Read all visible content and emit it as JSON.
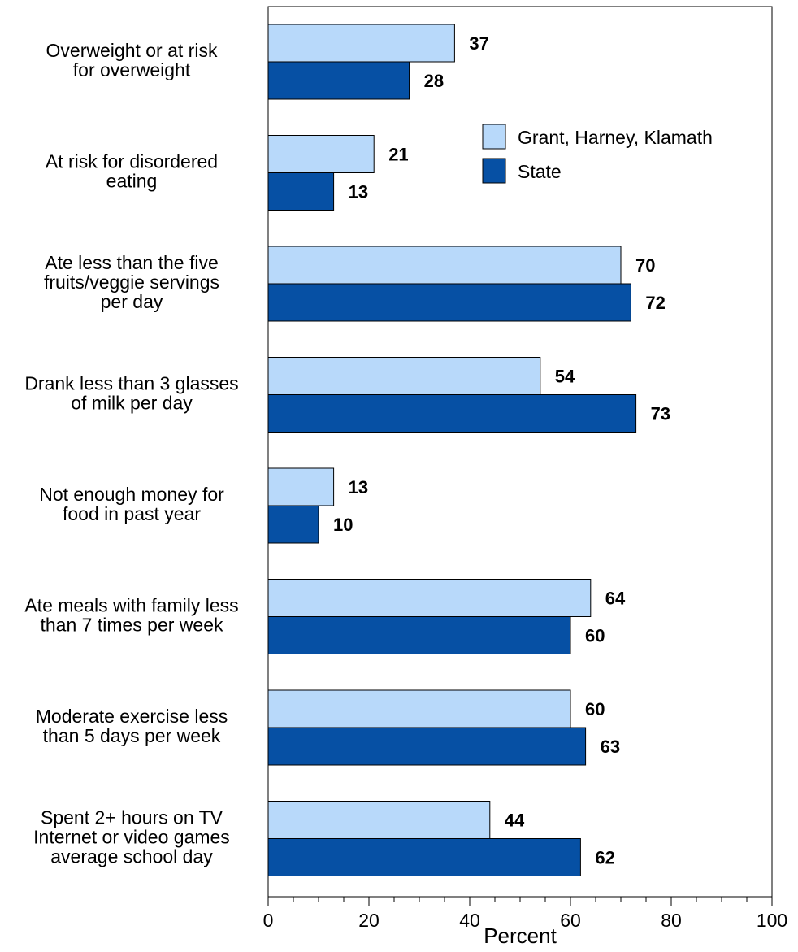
{
  "chart_data": {
    "type": "bar",
    "orientation": "horizontal",
    "categories": [
      [
        "Overweight or at risk",
        "for overweight"
      ],
      [
        "At risk for disordered",
        "eating"
      ],
      [
        "Ate less than the five",
        "fruits/veggie servings",
        "per day"
      ],
      [
        "Drank less than 3 glasses",
        "of milk per day"
      ],
      [
        "Not enough money for",
        "food in past year"
      ],
      [
        "Ate meals with family less",
        "than 7 times per week"
      ],
      [
        "Moderate exercise less",
        "than 5 days per week"
      ],
      [
        "Spent 2+ hours on TV",
        "Internet or video games",
        "average school day"
      ]
    ],
    "series": [
      {
        "name": "Grant, Harney, Klamath",
        "color": "#b8d9fa",
        "values": [
          37,
          21,
          70,
          54,
          13,
          64,
          60,
          44
        ]
      },
      {
        "name": "State",
        "color": "#0650a4",
        "values": [
          28,
          13,
          72,
          73,
          10,
          60,
          63,
          62
        ]
      }
    ],
    "xlabel": "Percent",
    "xlim": [
      0,
      100
    ],
    "xticks": [
      0,
      20,
      40,
      60,
      80,
      100
    ],
    "legend_position": "top-right",
    "grid": false
  }
}
